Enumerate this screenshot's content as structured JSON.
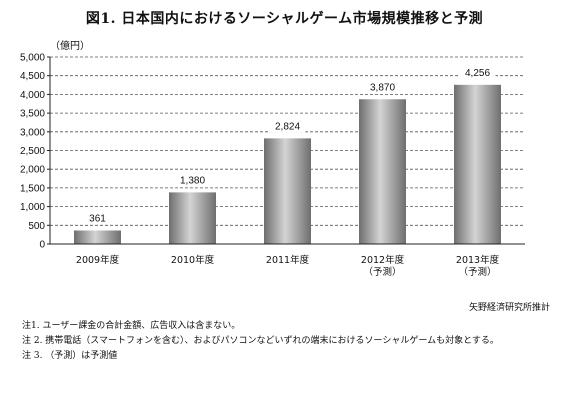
{
  "chart_data": {
    "type": "bar",
    "title": "図1. 日本国内におけるソーシャルゲーム市場規模推移と予測",
    "ylabel": "（億円）",
    "ylim": [
      0,
      5000
    ],
    "yticks": [
      "0",
      "500",
      "1,000",
      "1,500",
      "2,000",
      "2,500",
      "3,000",
      "3,500",
      "4,000",
      "4,500",
      "5,000"
    ],
    "grid": "dashed-horizontal",
    "categories": [
      {
        "line1": "2009年度",
        "line2": ""
      },
      {
        "line1": "2010年度",
        "line2": ""
      },
      {
        "line1": "2011年度",
        "line2": ""
      },
      {
        "line1": "2012年度",
        "line2": "（予測）"
      },
      {
        "line1": "2013年度",
        "line2": "（予測）"
      }
    ],
    "values": [
      361,
      1380,
      2824,
      3870,
      4256
    ],
    "value_labels": [
      "361",
      "1,380",
      "2,824",
      "3,870",
      "4,256"
    ],
    "colors": {
      "bar_dark": "#6e6e6e",
      "bar_light": "#d4d4d4",
      "grid": "#555555"
    }
  },
  "source": "矢野経済研究所推計",
  "notes": [
    "注1.  ユーザー課金の合計金額、広告収入は含まない。",
    "注 2.  携帯電話（スマートフォンを含む）、およびパソコンなどいずれの端末におけるソーシャルゲームも対象とする。",
    "注 3.  （予測）は予測値"
  ]
}
